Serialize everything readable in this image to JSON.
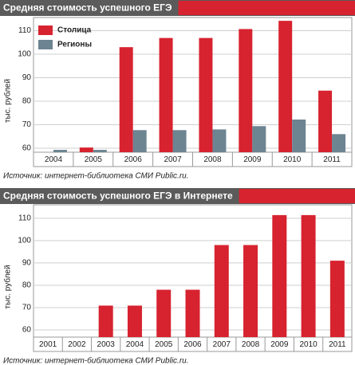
{
  "chart_data": [
    {
      "type": "bar",
      "title": "Средняя стоимость успешного ЕГЭ",
      "ylabel": "тыс. рублей",
      "source": "Источник: интернет-библиотека СМИ Public.ru.",
      "categories": [
        "2004",
        "2005",
        "2006",
        "2007",
        "2008",
        "2009",
        "2010",
        "2011"
      ],
      "series": [
        {
          "name": "Столица",
          "color": "#d7232f",
          "values": [
            null,
            60.3,
            103,
            106.9,
            106.9,
            110.7,
            114.2,
            84.5
          ]
        },
        {
          "name": "Регионы",
          "color": "#6d8491",
          "values": [
            59.3,
            59.3,
            67.7,
            67.7,
            68,
            69.4,
            72.2,
            66
          ]
        }
      ],
      "ylim": [
        58.3,
        115.6
      ],
      "yticks": [
        60,
        70,
        80,
        90,
        100,
        110
      ],
      "grid": true
    },
    {
      "type": "bar",
      "title": "Средняя стоимость успешного ЕГЭ в Интернете",
      "ylabel": "тыс. рублей",
      "source": "Источник: интернет-библиотека СМИ Public.ru.",
      "categories": [
        "2001",
        "2002",
        "2003",
        "2004",
        "2005",
        "2006",
        "2007",
        "2008",
        "2009",
        "2010",
        "2011"
      ],
      "series": [
        {
          "name": null,
          "color": "#d7232f",
          "values": [
            null,
            null,
            70.9,
            70.9,
            78,
            78,
            98,
            98,
            111.4,
            111.4,
            91
          ]
        }
      ],
      "ylim": [
        56.8,
        116
      ],
      "yticks": [
        60,
        70,
        80,
        90,
        100,
        110
      ],
      "grid": true
    }
  ]
}
